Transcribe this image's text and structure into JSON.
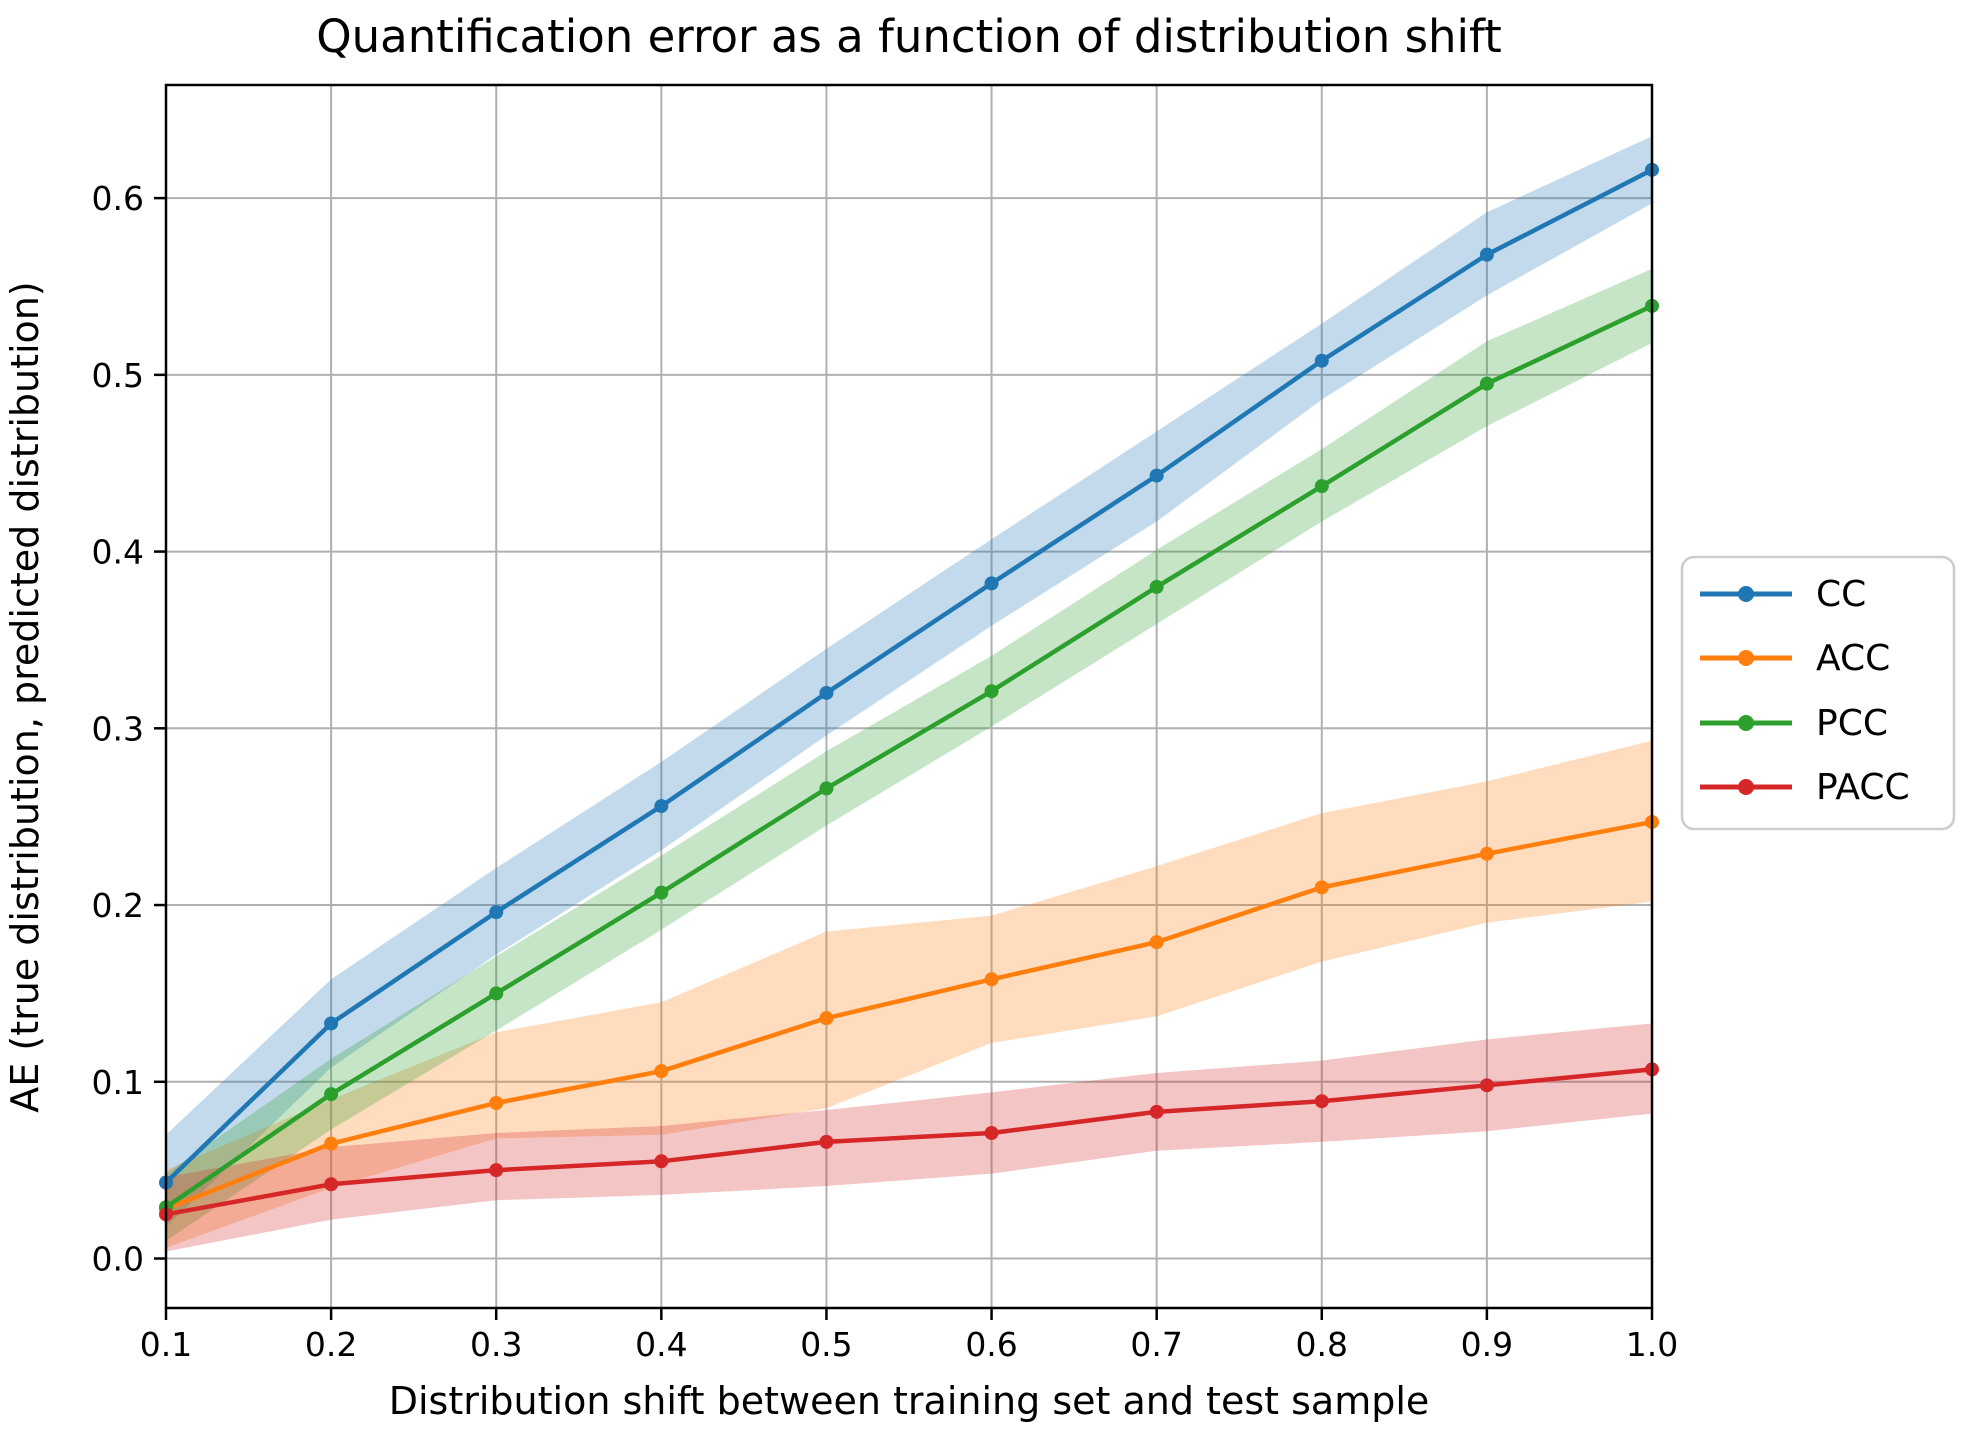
{
  "chart_data": {
    "type": "line",
    "title": "Quantification error as a function of distribution shift",
    "xlabel": "Distribution shift between training set and test sample",
    "ylabel": "AE (true distribution, predicted distribution)",
    "x": [
      0.1,
      0.2,
      0.3,
      0.4,
      0.5,
      0.6,
      0.7,
      0.8,
      0.9,
      1.0
    ],
    "xticks": [
      0.1,
      0.2,
      0.3,
      0.4,
      0.5,
      0.6,
      0.7,
      0.8,
      0.9,
      1.0
    ],
    "xtick_labels": [
      "0.1",
      "0.2",
      "0.3",
      "0.4",
      "0.5",
      "0.6",
      "0.7",
      "0.8",
      "0.9",
      "1.0"
    ],
    "yticks": [
      0.0,
      0.1,
      0.2,
      0.3,
      0.4,
      0.5,
      0.6
    ],
    "ytick_labels": [
      "0.0",
      "0.1",
      "0.2",
      "0.3",
      "0.4",
      "0.5",
      "0.6"
    ],
    "xlim": [
      0.1,
      1.0
    ],
    "ylim": [
      -0.028,
      0.664
    ],
    "grid": true,
    "grid_color": "#b0b0b0",
    "band_opacity": 0.27,
    "legend": {
      "position": "center-right-outside",
      "entries": [
        "CC",
        "ACC",
        "PCC",
        "PACC"
      ],
      "border_color": "#cccccc",
      "background": "#ffffff"
    },
    "series": [
      {
        "name": "CC",
        "color": "#1f77b4",
        "values": [
          0.043,
          0.133,
          0.196,
          0.256,
          0.32,
          0.382,
          0.443,
          0.508,
          0.568,
          0.616
        ],
        "band_lo": [
          0.018,
          0.108,
          0.172,
          0.231,
          0.296,
          0.358,
          0.417,
          0.486,
          0.545,
          0.597
        ],
        "band_hi": [
          0.07,
          0.158,
          0.221,
          0.281,
          0.345,
          0.407,
          0.468,
          0.529,
          0.592,
          0.635
        ]
      },
      {
        "name": "ACC",
        "color": "#ff7f0e",
        "values": [
          0.028,
          0.065,
          0.088,
          0.106,
          0.136,
          0.158,
          0.179,
          0.21,
          0.229,
          0.247
        ],
        "band_lo": [
          0.006,
          0.04,
          0.068,
          0.07,
          0.085,
          0.122,
          0.137,
          0.168,
          0.19,
          0.202
        ],
        "band_hi": [
          0.05,
          0.09,
          0.128,
          0.145,
          0.185,
          0.194,
          0.222,
          0.252,
          0.27,
          0.293
        ]
      },
      {
        "name": "PCC",
        "color": "#2ca02c",
        "values": [
          0.029,
          0.093,
          0.15,
          0.207,
          0.266,
          0.321,
          0.38,
          0.437,
          0.495,
          0.539
        ],
        "band_lo": [
          0.01,
          0.073,
          0.129,
          0.186,
          0.245,
          0.301,
          0.359,
          0.417,
          0.471,
          0.518
        ],
        "band_hi": [
          0.048,
          0.113,
          0.171,
          0.228,
          0.287,
          0.341,
          0.401,
          0.458,
          0.519,
          0.56
        ]
      },
      {
        "name": "PACC",
        "color": "#d62728",
        "values": [
          0.025,
          0.042,
          0.05,
          0.055,
          0.066,
          0.071,
          0.083,
          0.089,
          0.098,
          0.107
        ],
        "band_lo": [
          0.004,
          0.022,
          0.033,
          0.036,
          0.041,
          0.048,
          0.061,
          0.066,
          0.072,
          0.082
        ],
        "band_hi": [
          0.046,
          0.063,
          0.071,
          0.075,
          0.084,
          0.094,
          0.105,
          0.112,
          0.124,
          0.133
        ]
      }
    ]
  }
}
